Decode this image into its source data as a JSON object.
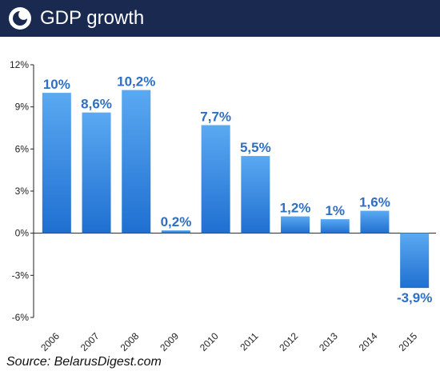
{
  "header": {
    "title": "GDP growth",
    "background": "#19294f",
    "logo_icon": "circle-swirl-icon"
  },
  "source": "Source: BelarusDigest.com",
  "chart_data": {
    "type": "bar",
    "categories": [
      "2006",
      "2007",
      "2008",
      "2009",
      "2010",
      "2011",
      "2012",
      "2013",
      "2014",
      "2015"
    ],
    "values": [
      10,
      8.6,
      10.2,
      0.2,
      7.7,
      5.5,
      1.2,
      1,
      1.6,
      -3.9
    ],
    "data_labels": [
      "10%",
      "8,6%",
      "10,2%",
      "0,2%",
      "7,7%",
      "5,5%",
      "1,2%",
      "1%",
      "1,6%",
      "-3,9%"
    ],
    "y_ticks": [
      12,
      9,
      6,
      3,
      0,
      -3,
      -6
    ],
    "y_tick_labels": [
      "12%",
      "9%",
      "6%",
      "3%",
      "0%",
      "-3%",
      "-6%"
    ],
    "ylim": [
      -6,
      12
    ],
    "grid": false,
    "bar_color_top": "#5aa9f2",
    "bar_color_bottom": "#1f6fd1",
    "label_color": "#2f6fc1"
  }
}
